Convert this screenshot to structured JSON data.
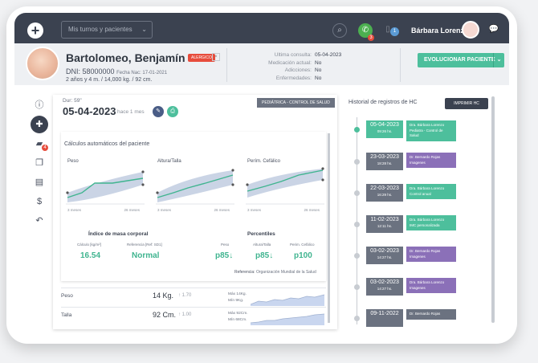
{
  "topbar": {
    "turnos_placeholder": "Mis turnos y pacientes",
    "user_name": "Bárbara Lorenzo",
    "whatsapp_badge": "3",
    "phone_badge": "1"
  },
  "patient": {
    "name": "Bartolomeo, Benjamín",
    "alert_label": "ALERGICO",
    "dni": "DNI: 58000000",
    "birth": "Fecha Nac: 17-01-2021",
    "age_line": "2 años y 4 m. / 14,000 kg. / 92 cm.",
    "meta": [
      {
        "label": "Ultima consulta:",
        "value": "05-04-2023"
      },
      {
        "label": "Medicación actual:",
        "value": "No"
      },
      {
        "label": "Adicciones:",
        "value": "No"
      },
      {
        "label": "Enfermedades:",
        "value": "No"
      }
    ],
    "evolve_label": "EVOLUCIONAR PACIENTE"
  },
  "sidebar": {
    "folder_badge": "4"
  },
  "consult": {
    "duration": "Dur: 59\"",
    "date": "05-04-2023",
    "ago": "hace 1 mes",
    "specialty": "PEDIÁTRICA - CONTROL DE SALUD"
  },
  "calc": {
    "title": "Cálculos automáticos del paciente",
    "charts": [
      {
        "label": "Peso",
        "tick_start": "3 meses",
        "tick_end": "26 meses"
      },
      {
        "label": "Altura/Talla",
        "tick_start": "3 meses",
        "tick_end": "26 meses"
      },
      {
        "label": "Perím. Cefálico",
        "tick_start": "3 meses",
        "tick_end": "26 meses"
      }
    ],
    "imc_title": "Índice de masa corporal",
    "imc_calc_label": "Cálculo [kg/m²]",
    "imc_ref_label": "Referencia [Ref: SD1]",
    "imc_value": "16.54",
    "imc_ref_value": "Normal",
    "perc_title": "Percentiles",
    "perc": [
      {
        "label": "Peso",
        "value": "p85↓"
      },
      {
        "label": "Altura/Talla",
        "value": "p85↓"
      },
      {
        "label": "Perim. Cefálico",
        "value": "p100"
      }
    ],
    "ref_label": "Referencia:",
    "ref_value": "Organización Mundial de la Salud"
  },
  "measures": [
    {
      "label": "Peso",
      "value": "14 Kg.",
      "prev": "↑ 1.70",
      "max": "Máx 14Kg.",
      "min": "Mín 9Kg."
    },
    {
      "label": "Talla",
      "value": "92 Cm.",
      "prev": "↑ 1.00",
      "max": "Máx 92Cm.",
      "min": "Mín 68Cm."
    }
  ],
  "history": {
    "title": "Historial de registros de HC",
    "print_label": "IMPRIMIR HC",
    "entries": [
      {
        "date": "05-04-2023",
        "time": "09:26 hs.",
        "doctor": "Dra. Bárbara Lorenzo",
        "desc": "Pediatra - Control de Salud",
        "date_color": "green",
        "doc_color": "green"
      },
      {
        "date": "23-03-2023",
        "time": "18:28 hs.",
        "doctor": "Dr. Bernardo Rojas",
        "desc": "Imagenes",
        "date_color": "grey",
        "doc_color": "purple"
      },
      {
        "date": "22-03-2023",
        "time": "16:29 hs.",
        "doctor": "Dra. Bárbara Lorenzo",
        "desc": "Control anual",
        "date_color": "grey",
        "doc_color": "green"
      },
      {
        "date": "11-02-2023",
        "time": "12:11 hs.",
        "doctor": "Dra. Bárbara Lorenzo",
        "desc": "IMC personalizada",
        "date_color": "grey",
        "doc_color": "green"
      },
      {
        "date": "03-02-2023",
        "time": "14:27 hs.",
        "doctor": "Dr. Bernardo Rojas",
        "desc": "Imagenes",
        "date_color": "grey",
        "doc_color": "purple"
      },
      {
        "date": "03-02-2023",
        "time": "14:27 hs.",
        "doctor": "Dra. Bárbara Lorenzo",
        "desc": "Imagenes",
        "date_color": "grey",
        "doc_color": "purple"
      },
      {
        "date": "09-11-2022",
        "time": "",
        "doctor": "Dr. Bernardo Rojas",
        "desc": "",
        "date_color": "grey",
        "doc_color": "grey"
      }
    ]
  }
}
